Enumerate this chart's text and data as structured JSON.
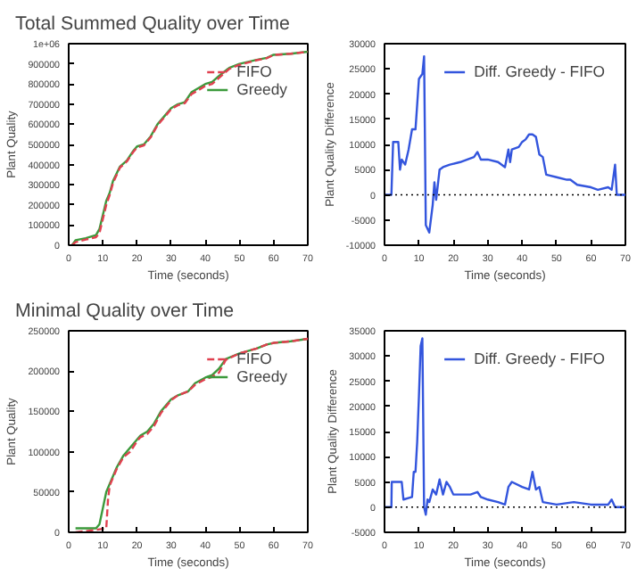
{
  "chart_data": [
    {
      "type": "line",
      "title": "Total Summed Quality over Time",
      "xlabel": "Time (seconds)",
      "ylabel": "Plant Quality",
      "xlim": [
        0,
        70
      ],
      "xticks": [
        0,
        10,
        20,
        30,
        40,
        50,
        60,
        70
      ],
      "ylim": [
        0,
        1000000
      ],
      "yticks": [
        0,
        100000,
        200000,
        300000,
        400000,
        500000,
        600000,
        700000,
        800000,
        900000,
        {
          "value": 1000000,
          "label": "1e+06"
        }
      ],
      "grid": false,
      "legend": "top right",
      "series": [
        {
          "name": "FIFO",
          "color": "#e0404f",
          "line_style": "dashed",
          "x": [
            1,
            2,
            5,
            8,
            9,
            10,
            11,
            12,
            13,
            15,
            17,
            19,
            20,
            22,
            24,
            26,
            28,
            30,
            32,
            34,
            36,
            38,
            40,
            42,
            44,
            47,
            50,
            55,
            58,
            60,
            65,
            70
          ],
          "values": [
            0,
            15000,
            28000,
            40000,
            60000,
            130000,
            200000,
            250000,
            310000,
            385000,
            415000,
            465000,
            485000,
            495000,
            535000,
            595000,
            635000,
            675000,
            695000,
            705000,
            750000,
            770000,
            790000,
            800000,
            830000,
            875000,
            895000,
            918000,
            928000,
            944000,
            950000,
            960000
          ]
        },
        {
          "name": "Greedy",
          "color": "#3c9a3c",
          "line_style": "solid",
          "x": [
            1,
            2,
            5,
            8,
            9,
            10,
            11,
            12,
            13,
            15,
            17,
            19,
            20,
            22,
            24,
            26,
            28,
            30,
            32,
            34,
            36,
            38,
            40,
            42,
            44,
            47,
            50,
            55,
            58,
            60,
            65,
            70
          ],
          "values": [
            0,
            25000,
            35000,
            50000,
            80000,
            150000,
            220000,
            260000,
            320000,
            390000,
            420000,
            470000,
            490000,
            500000,
            540000,
            600000,
            640000,
            680000,
            700000,
            710000,
            760000,
            780000,
            800000,
            810000,
            840000,
            880000,
            900000,
            920000,
            930000,
            945000,
            950000,
            960000
          ]
        }
      ]
    },
    {
      "type": "line",
      "xlabel": "Time (seconds)",
      "ylabel": "Plant Quality Difference",
      "xlim": [
        0,
        70
      ],
      "xticks": [
        0,
        10,
        20,
        30,
        40,
        50,
        60,
        70
      ],
      "ylim": [
        -10000,
        30000
      ],
      "yticks": [
        -10000,
        -5000,
        0,
        5000,
        10000,
        15000,
        20000,
        25000,
        30000
      ],
      "grid": false,
      "legend": "top right",
      "ref_lines": [
        {
          "axis": "y",
          "value": 0,
          "line_style": "dotted",
          "color": "#000000"
        }
      ],
      "series": [
        {
          "name": "Diff. Greedy - FIFO",
          "color": "#3355dd",
          "line_style": "solid",
          "x": [
            0,
            2,
            2.5,
            4,
            4.5,
            5,
            6,
            7,
            8,
            9,
            10,
            11,
            11.5,
            12,
            13,
            14,
            14.5,
            15,
            16,
            17,
            19,
            22,
            26,
            27,
            28,
            30,
            33,
            35,
            36,
            36.5,
            37,
            39,
            40,
            41,
            42,
            43,
            44,
            45,
            46,
            47,
            50,
            53,
            54,
            56,
            60,
            62,
            65,
            66,
            67,
            67.5,
            70
          ],
          "values": [
            0,
            0,
            10500,
            10500,
            5000,
            7000,
            6000,
            9000,
            13000,
            13000,
            23000,
            24000,
            27500,
            -6000,
            -7500,
            -2000,
            2500,
            -1000,
            5000,
            5500,
            6000,
            6500,
            7500,
            8500,
            7000,
            7000,
            6500,
            5500,
            9000,
            6500,
            9000,
            9500,
            10500,
            11000,
            12000,
            12000,
            11500,
            8000,
            7500,
            4000,
            3500,
            3000,
            3000,
            2000,
            1500,
            1000,
            1500,
            1000,
            6000,
            0,
            0
          ]
        }
      ]
    },
    {
      "type": "line",
      "title": "Minimal Quality over Time",
      "xlabel": "Time (seconds)",
      "ylabel": "Plant Quality",
      "xlim": [
        0,
        70
      ],
      "xticks": [
        0,
        10,
        20,
        30,
        40,
        50,
        60,
        70
      ],
      "ylim": [
        0,
        250000
      ],
      "yticks": [
        0,
        50000,
        100000,
        150000,
        200000,
        250000
      ],
      "grid": false,
      "legend": "top right",
      "series": [
        {
          "name": "FIFO",
          "color": "#e0404f",
          "line_style": "dashed",
          "x": [
            2,
            8,
            11,
            11.5,
            12,
            14,
            16,
            18,
            20,
            21,
            23,
            25,
            27,
            30,
            32,
            35,
            37,
            40,
            42,
            44,
            46,
            50,
            55,
            58,
            60,
            65,
            70
          ],
          "values": [
            0,
            3000,
            5000,
            40000,
            58000,
            78000,
            93000,
            100000,
            113000,
            118000,
            122000,
            132000,
            148000,
            164000,
            170000,
            175000,
            183000,
            190000,
            193000,
            198000,
            214000,
            222000,
            228000,
            233000,
            235000,
            237000,
            240000
          ]
        },
        {
          "name": "Greedy",
          "color": "#3c9a3c",
          "line_style": "solid",
          "x": [
            2,
            8,
            9,
            10,
            11,
            12,
            14,
            16,
            18,
            20,
            21,
            23,
            25,
            27,
            30,
            32,
            35,
            37,
            40,
            42,
            44,
            46,
            50,
            55,
            58,
            60,
            65,
            70
          ],
          "values": [
            5000,
            5000,
            10000,
            30000,
            50000,
            60000,
            80000,
            95000,
            105000,
            115000,
            120000,
            125000,
            135000,
            150000,
            165000,
            170000,
            175000,
            185000,
            192000,
            195000,
            203000,
            215000,
            222000,
            228000,
            233000,
            235000,
            237000,
            240000
          ]
        }
      ]
    },
    {
      "type": "line",
      "xlabel": "Time (seconds)",
      "ylabel": "Plant Quality Difference",
      "xlim": [
        0,
        70
      ],
      "xticks": [
        0,
        10,
        20,
        30,
        40,
        50,
        60,
        70
      ],
      "ylim": [
        -5000,
        35000
      ],
      "yticks": [
        -5000,
        0,
        5000,
        10000,
        15000,
        20000,
        25000,
        30000,
        35000
      ],
      "grid": false,
      "legend": "top right",
      "ref_lines": [
        {
          "axis": "y",
          "value": 0,
          "line_style": "dotted",
          "color": "#000000"
        }
      ],
      "series": [
        {
          "name": "Diff. Greedy - FIFO",
          "color": "#3355dd",
          "line_style": "solid",
          "x": [
            0,
            2,
            2.1,
            5,
            5.5,
            8,
            8.5,
            9,
            9.5,
            10,
            10.5,
            11,
            11.5,
            12,
            12.5,
            13,
            14,
            15,
            16,
            17,
            18,
            19,
            20,
            25,
            27,
            28,
            30,
            33,
            35,
            36,
            37,
            40,
            42,
            43,
            44,
            45,
            46,
            50,
            55,
            60,
            65,
            66,
            67,
            70
          ],
          "values": [
            0,
            0,
            5000,
            5000,
            1500,
            2000,
            7000,
            7000,
            13000,
            22000,
            32000,
            33500,
            0,
            -1500,
            1500,
            1000,
            3500,
            2500,
            5500,
            2500,
            5000,
            4000,
            2500,
            2500,
            3000,
            2000,
            1500,
            1000,
            500,
            4000,
            5000,
            4000,
            3500,
            7000,
            3500,
            4000,
            1000,
            500,
            1000,
            500,
            500,
            1500,
            0,
            0
          ]
        }
      ]
    }
  ]
}
